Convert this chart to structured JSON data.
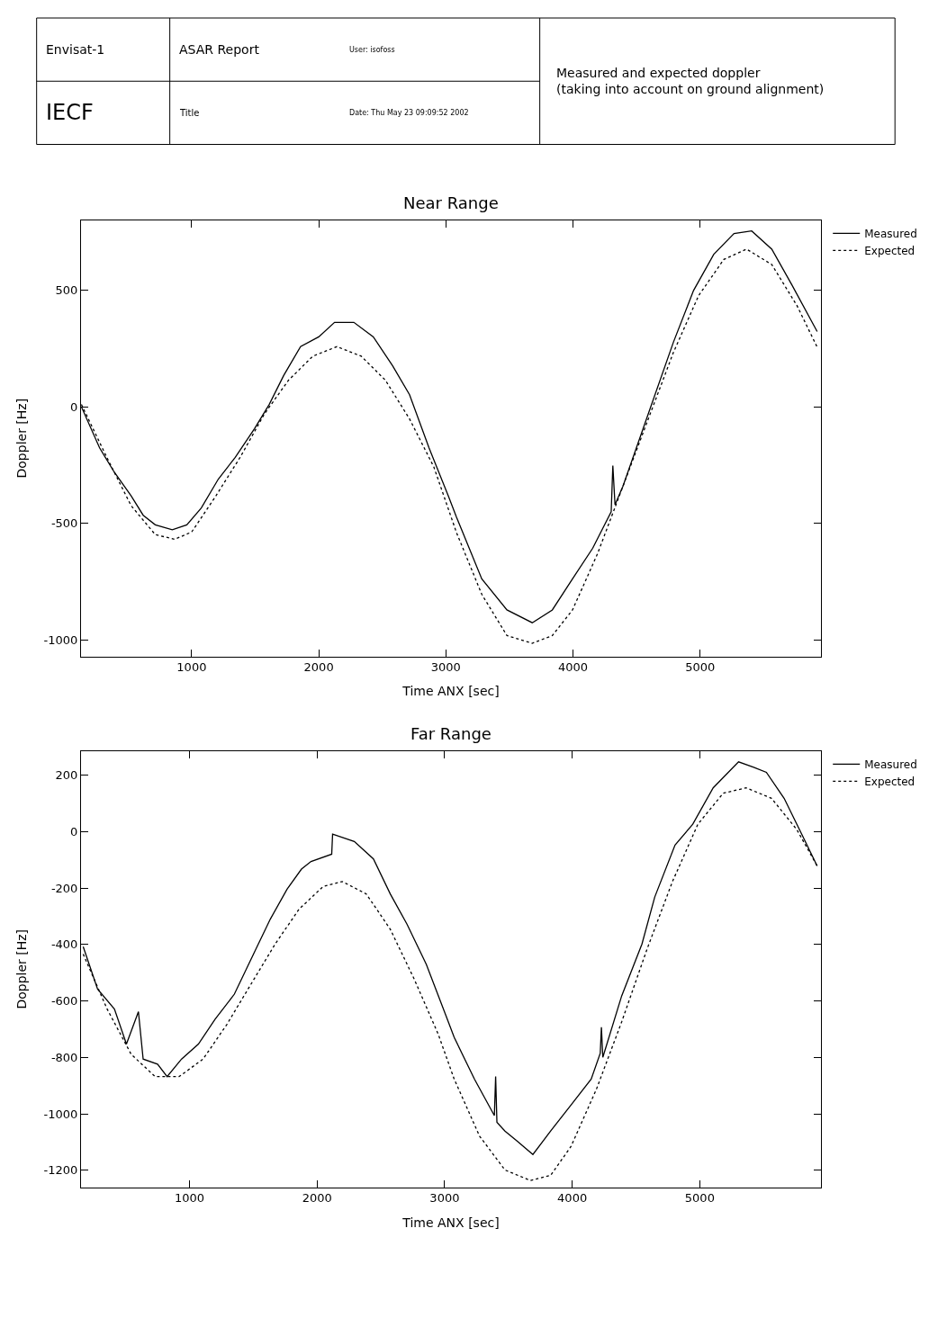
{
  "chart_data": [
    {
      "type": "other",
      "title": "Measured and expected doppler\n(taking into account on ground alignment)",
      "annotations": [
        "Envisat-1",
        "IECF",
        "ASAR Report",
        "Title",
        "User: isofoss",
        "Date: Thu May 23 09:09:52 2002"
      ]
    },
    {
      "type": "line",
      "title": "Near Range",
      "xlabel": "Time ANX [sec]",
      "ylabel": "Doppler [Hz]",
      "xlim": [
        130,
        5950
      ],
      "ylim": [
        -1070,
        800
      ],
      "xticks": [
        1000,
        2000,
        3000,
        4000,
        5000
      ],
      "yticks": [
        -1000,
        -500,
        0,
        500
      ],
      "legend": "right",
      "series": [
        {
          "name": "Measured",
          "color": "#000000",
          "line_style": "solid",
          "x": [
            133,
            276,
            390,
            524,
            619,
            714,
            848,
            962,
            1076,
            1210,
            1343,
            1495,
            1610,
            1724,
            1857,
            2000,
            2124,
            2276,
            2429,
            2581,
            2714,
            2867,
            3019,
            3083,
            3282,
            3480,
            3679,
            3837,
            3996,
            4155,
            4300,
            4313,
            4330,
            4393,
            4591,
            4790,
            4948,
            5107,
            5266,
            5405,
            5563,
            5722,
            5920
          ],
          "values": [
            0,
            -176,
            -279,
            -382,
            -465,
            -506,
            -527,
            -506,
            -434,
            -310,
            -217,
            -93,
            10,
            134,
            258,
            300,
            362,
            362,
            300,
            176,
            52,
            -176,
            -382,
            -473,
            -738,
            -871,
            -926,
            -871,
            -738,
            -606,
            -450,
            -252,
            -420,
            -340,
            -31,
            278,
            499,
            654,
            743,
            754,
            676,
            522,
            323
          ]
        },
        {
          "name": "Expected",
          "color": "#000000",
          "line_style": "dotted",
          "x": [
            133,
            333,
            524,
            714,
            867,
            1000,
            1191,
            1381,
            1572,
            1762,
            1953,
            2143,
            2334,
            2524,
            2714,
            2905,
            3083,
            3282,
            3480,
            3679,
            3837,
            3996,
            4194,
            4393,
            4591,
            4790,
            4988,
            5186,
            5365,
            5563,
            5762,
            5920
          ],
          "values": [
            10,
            -217,
            -424,
            -548,
            -568,
            -537,
            -382,
            -217,
            -31,
            114,
            217,
            258,
            217,
            114,
            -52,
            -258,
            -539,
            -804,
            -981,
            -1014,
            -981,
            -871,
            -628,
            -340,
            -53,
            234,
            477,
            632,
            676,
            610,
            433,
            256
          ]
        }
      ]
    },
    {
      "type": "line",
      "title": "Far Range",
      "xlabel": "Time ANX [sec]",
      "ylabel": "Doppler [Hz]",
      "xlim": [
        150,
        5950
      ],
      "ylim": [
        -1260,
        285
      ],
      "xticks": [
        1000,
        2000,
        3000,
        4000,
        5000
      ],
      "yticks": [
        -1200,
        -1000,
        -800,
        -600,
        -400,
        -200,
        0,
        200
      ],
      "legend": "right",
      "series": [
        {
          "name": "Measured",
          "color": "#000000",
          "line_style": "solid",
          "x": [
            167,
            280,
            412,
            506,
            600,
            637,
            750,
            825,
            938,
            1070,
            1201,
            1352,
            1502,
            1634,
            1765,
            1878,
            1953,
            2115,
            2122,
            2292,
            2442,
            2574,
            2705,
            2856,
            3006,
            3075,
            3234,
            3390,
            3400,
            3410,
            3473,
            3572,
            3692,
            3831,
            3990,
            4149,
            4220,
            4229,
            4240,
            4388,
            4547,
            4647,
            4806,
            4945,
            5105,
            5304,
            5423,
            5522,
            5661,
            5801,
            5920
          ],
          "values": [
            -408,
            -558,
            -629,
            -753,
            -638,
            -806,
            -824,
            -868,
            -806,
            -753,
            -665,
            -576,
            -434,
            -310,
            -204,
            -133,
            -106,
            -80,
            -9,
            -35,
            -97,
            -221,
            -328,
            -470,
            -647,
            -729,
            -877,
            -1006,
            -868,
            -1030,
            -1061,
            -1098,
            -1144,
            -1061,
            -969,
            -877,
            -785,
            -693,
            -800,
            -582,
            -398,
            -232,
            -48,
            26,
            155,
            247,
            228,
            210,
            118,
            -11,
            -122
          ]
        },
        {
          "name": "Expected",
          "color": "#000000",
          "line_style": "dotted",
          "x": [
            167,
            355,
            543,
            731,
            919,
            1107,
            1295,
            1483,
            1671,
            1859,
            2047,
            2198,
            2386,
            2574,
            2762,
            2950,
            3075,
            3274,
            3473,
            3672,
            3831,
            3990,
            4189,
            4388,
            4587,
            4786,
            4985,
            5184,
            5363,
            5562,
            5761,
            5920
          ],
          "values": [
            -434,
            -629,
            -789,
            -868,
            -868,
            -806,
            -682,
            -540,
            -399,
            -275,
            -195,
            -177,
            -221,
            -346,
            -523,
            -718,
            -877,
            -1079,
            -1199,
            -1236,
            -1218,
            -1116,
            -914,
            -674,
            -416,
            -177,
            26,
            136,
            155,
            118,
            7,
            -122
          ]
        }
      ]
    }
  ]
}
